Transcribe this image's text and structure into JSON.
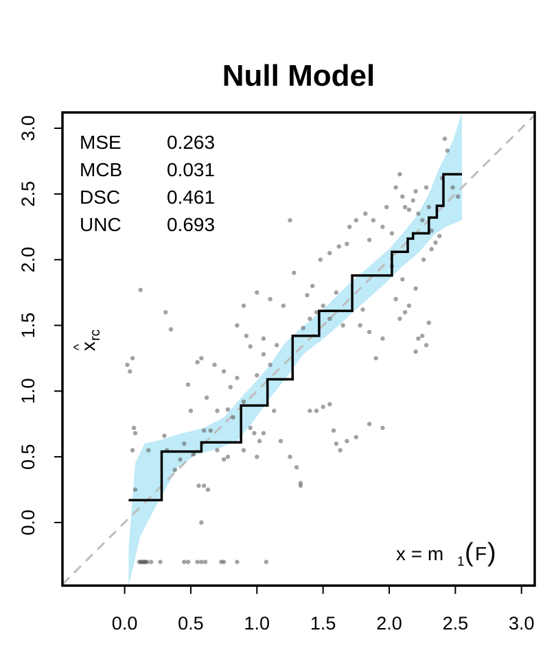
{
  "chart_data": {
    "type": "scatter",
    "title": "Null Model",
    "xlabel": "",
    "ylabel": "x̂rc",
    "ylabel_main": "x",
    "ylabel_hat": "^",
    "ylabel_sub": "rc",
    "xlim": [
      -0.47,
      3.1
    ],
    "ylim": [
      -0.48,
      3.12
    ],
    "x_ticks": [
      "0.0",
      "0.5",
      "1.0",
      "1.5",
      "2.0",
      "2.5",
      "3.0"
    ],
    "y_ticks": [
      "0.0",
      "0.5",
      "1.0",
      "1.5",
      "2.0",
      "2.5",
      "3.0"
    ],
    "grid": false,
    "stats": [
      {
        "name": "MSE",
        "value": "0.263"
      },
      {
        "name": "MCB",
        "value": "0.031"
      },
      {
        "name": "DSC",
        "value": "0.461"
      },
      {
        "name": "UNC",
        "value": "0.693"
      }
    ],
    "annotation": {
      "prefix": "x = m",
      "sub": "1",
      "paren_open": "(",
      "arg": "F",
      "paren_close": ")"
    },
    "diagonal": {
      "style": "dashed",
      "color": "#bdbdbd"
    },
    "band_color": "#bfeaf7",
    "step_color": "#000000",
    "point_color": "#555555",
    "reliability_step": [
      [
        0.03,
        0.17
      ],
      [
        0.28,
        0.17
      ],
      [
        0.28,
        0.54
      ],
      [
        0.58,
        0.54
      ],
      [
        0.58,
        0.61
      ],
      [
        0.88,
        0.61
      ],
      [
        0.88,
        0.89
      ],
      [
        1.08,
        0.89
      ],
      [
        1.08,
        1.09
      ],
      [
        1.27,
        1.09
      ],
      [
        1.27,
        1.42
      ],
      [
        1.47,
        1.42
      ],
      [
        1.47,
        1.61
      ],
      [
        1.72,
        1.61
      ],
      [
        1.72,
        1.88
      ],
      [
        2.02,
        1.88
      ],
      [
        2.02,
        2.06
      ],
      [
        2.14,
        2.06
      ],
      [
        2.14,
        2.16
      ],
      [
        2.18,
        2.16
      ],
      [
        2.18,
        2.2
      ],
      [
        2.3,
        2.2
      ],
      [
        2.3,
        2.32
      ],
      [
        2.36,
        2.32
      ],
      [
        2.36,
        2.41
      ],
      [
        2.41,
        2.41
      ],
      [
        2.41,
        2.65
      ],
      [
        2.55,
        2.65
      ]
    ],
    "band_upper": [
      [
        0.03,
        -0.2
      ],
      [
        0.08,
        0.45
      ],
      [
        0.15,
        0.6
      ],
      [
        0.28,
        0.63
      ],
      [
        0.4,
        0.67
      ],
      [
        0.6,
        0.72
      ],
      [
        0.75,
        0.8
      ],
      [
        0.88,
        0.95
      ],
      [
        1.0,
        1.08
      ],
      [
        1.1,
        1.2
      ],
      [
        1.2,
        1.35
      ],
      [
        1.3,
        1.45
      ],
      [
        1.42,
        1.55
      ],
      [
        1.55,
        1.67
      ],
      [
        1.7,
        1.82
      ],
      [
        1.85,
        1.95
      ],
      [
        2.0,
        2.08
      ],
      [
        2.12,
        2.22
      ],
      [
        2.22,
        2.35
      ],
      [
        2.3,
        2.5
      ],
      [
        2.38,
        2.7
      ],
      [
        2.48,
        2.9
      ],
      [
        2.55,
        3.12
      ]
    ],
    "band_lower": [
      [
        0.03,
        -0.48
      ],
      [
        0.12,
        -0.1
      ],
      [
        0.25,
        0.15
      ],
      [
        0.4,
        0.42
      ],
      [
        0.55,
        0.52
      ],
      [
        0.7,
        0.56
      ],
      [
        0.85,
        0.62
      ],
      [
        0.98,
        0.78
      ],
      [
        1.1,
        0.95
      ],
      [
        1.22,
        1.1
      ],
      [
        1.35,
        1.28
      ],
      [
        1.48,
        1.38
      ],
      [
        1.62,
        1.5
      ],
      [
        1.78,
        1.65
      ],
      [
        1.95,
        1.8
      ],
      [
        2.1,
        1.95
      ],
      [
        2.22,
        2.05
      ],
      [
        2.35,
        2.2
      ],
      [
        2.45,
        2.26
      ],
      [
        2.55,
        2.3
      ]
    ],
    "points": [
      [
        0.11,
        -0.3
      ],
      [
        0.12,
        -0.3
      ],
      [
        0.13,
        -0.3
      ],
      [
        0.14,
        -0.3
      ],
      [
        0.15,
        -0.3
      ],
      [
        0.16,
        -0.3
      ],
      [
        0.17,
        -0.3
      ],
      [
        0.2,
        -0.3
      ],
      [
        0.27,
        -0.3
      ],
      [
        0.45,
        -0.3
      ],
      [
        0.48,
        -0.3
      ],
      [
        0.55,
        -0.3
      ],
      [
        0.58,
        -0.3
      ],
      [
        0.61,
        -0.3
      ],
      [
        0.73,
        -0.3
      ],
      [
        0.75,
        -0.3
      ],
      [
        0.85,
        -0.3
      ],
      [
        1.07,
        -0.3
      ],
      [
        0.02,
        1.2
      ],
      [
        0.04,
        1.15
      ],
      [
        0.06,
        1.25
      ],
      [
        0.07,
        0.72
      ],
      [
        0.08,
        0.68
      ],
      [
        0.06,
        0.55
      ],
      [
        0.12,
        1.77
      ],
      [
        0.31,
        1.6
      ],
      [
        0.35,
        1.47
      ],
      [
        0.5,
        0.85
      ],
      [
        0.48,
        1.05
      ],
      [
        0.55,
        1.22
      ],
      [
        0.58,
        1.25
      ],
      [
        0.62,
        0.95
      ],
      [
        0.68,
        1.2
      ],
      [
        0.75,
        1.15
      ],
      [
        0.8,
        1.03
      ],
      [
        0.85,
        1.1
      ],
      [
        0.9,
        0.92
      ],
      [
        0.95,
        1.34
      ],
      [
        1.0,
        1.12
      ],
      [
        1.05,
        1.28
      ],
      [
        1.1,
        1.2
      ],
      [
        0.52,
        0.52
      ],
      [
        0.56,
        0.28
      ],
      [
        0.6,
        0.28
      ],
      [
        0.63,
        0.25
      ],
      [
        0.58,
        0.0
      ],
      [
        0.7,
        0.55
      ],
      [
        0.75,
        0.48
      ],
      [
        0.78,
        0.5
      ],
      [
        0.9,
        0.55
      ],
      [
        0.95,
        0.72
      ],
      [
        0.98,
        0.68
      ],
      [
        1.02,
        0.62
      ],
      [
        1.05,
        0.68
      ],
      [
        1.0,
        0.5
      ],
      [
        1.13,
        0.85
      ],
      [
        1.18,
        0.62
      ],
      [
        1.25,
        0.5
      ],
      [
        1.3,
        0.42
      ],
      [
        1.33,
        0.3
      ],
      [
        1.33,
        0.28
      ],
      [
        1.4,
        0.85
      ],
      [
        1.45,
        0.85
      ],
      [
        1.5,
        0.88
      ],
      [
        1.55,
        0.9
      ],
      [
        1.58,
        0.7
      ],
      [
        1.6,
        0.6
      ],
      [
        1.63,
        0.55
      ],
      [
        1.68,
        0.62
      ],
      [
        1.75,
        0.65
      ],
      [
        1.85,
        0.75
      ],
      [
        1.95,
        0.72
      ],
      [
        1.45,
        1.6
      ],
      [
        1.4,
        1.55
      ],
      [
        1.35,
        1.48
      ],
      [
        1.5,
        1.65
      ],
      [
        1.55,
        1.55
      ],
      [
        1.6,
        1.75
      ],
      [
        1.65,
        1.5
      ],
      [
        1.38,
        1.73
      ],
      [
        1.42,
        1.8
      ],
      [
        1.28,
        1.9
      ],
      [
        1.25,
        2.3
      ],
      [
        1.48,
        2.0
      ],
      [
        1.55,
        2.05
      ],
      [
        1.62,
        2.1
      ],
      [
        1.68,
        2.12
      ],
      [
        1.7,
        2.25
      ],
      [
        1.75,
        2.3
      ],
      [
        1.82,
        2.35
      ],
      [
        1.85,
        2.15
      ],
      [
        1.88,
        2.3
      ],
      [
        1.95,
        2.25
      ],
      [
        1.98,
        2.4
      ],
      [
        2.02,
        2.2
      ],
      [
        2.05,
        2.55
      ],
      [
        2.08,
        2.65
      ],
      [
        2.1,
        2.48
      ],
      [
        2.12,
        2.4
      ],
      [
        2.15,
        2.38
      ],
      [
        2.18,
        2.45
      ],
      [
        2.2,
        2.52
      ],
      [
        2.22,
        2.35
      ],
      [
        2.25,
        2.3
      ],
      [
        2.28,
        2.55
      ],
      [
        2.3,
        2.4
      ],
      [
        2.32,
        2.22
      ],
      [
        2.35,
        2.13
      ],
      [
        2.38,
        2.18
      ],
      [
        2.4,
        2.62
      ],
      [
        2.42,
        2.92
      ],
      [
        2.44,
        2.83
      ],
      [
        2.48,
        2.55
      ],
      [
        2.52,
        2.48
      ],
      [
        2.05,
        1.7
      ],
      [
        2.08,
        1.55
      ],
      [
        2.12,
        1.6
      ],
      [
        2.15,
        1.65
      ],
      [
        2.2,
        1.78
      ],
      [
        2.22,
        1.4
      ],
      [
        2.25,
        1.42
      ],
      [
        2.28,
        1.35
      ],
      [
        2.3,
        1.52
      ],
      [
        2.2,
        1.3
      ],
      [
        1.95,
        1.4
      ],
      [
        1.85,
        1.45
      ],
      [
        1.9,
        1.25
      ],
      [
        1.78,
        1.5
      ],
      [
        1.8,
        1.62
      ],
      [
        2.02,
        1.95
      ],
      [
        2.1,
        1.85
      ],
      [
        2.26,
        2.0
      ],
      [
        2.32,
        2.08
      ],
      [
        1.2,
        1.65
      ],
      [
        1.1,
        1.7
      ],
      [
        1.0,
        1.75
      ],
      [
        0.9,
        1.65
      ],
      [
        0.85,
        1.5
      ],
      [
        0.92,
        1.42
      ],
      [
        1.05,
        1.4
      ],
      [
        1.15,
        1.35
      ],
      [
        0.7,
        0.85
      ],
      [
        0.78,
        0.86
      ],
      [
        0.82,
        0.8
      ],
      [
        0.6,
        0.7
      ],
      [
        0.65,
        0.7
      ],
      [
        0.42,
        0.48
      ],
      [
        0.38,
        0.4
      ],
      [
        0.45,
        0.6
      ],
      [
        0.32,
        0.55
      ],
      [
        0.08,
        0.25
      ],
      [
        0.18,
        0.55
      ],
      [
        0.3,
        0.66
      ]
    ]
  }
}
